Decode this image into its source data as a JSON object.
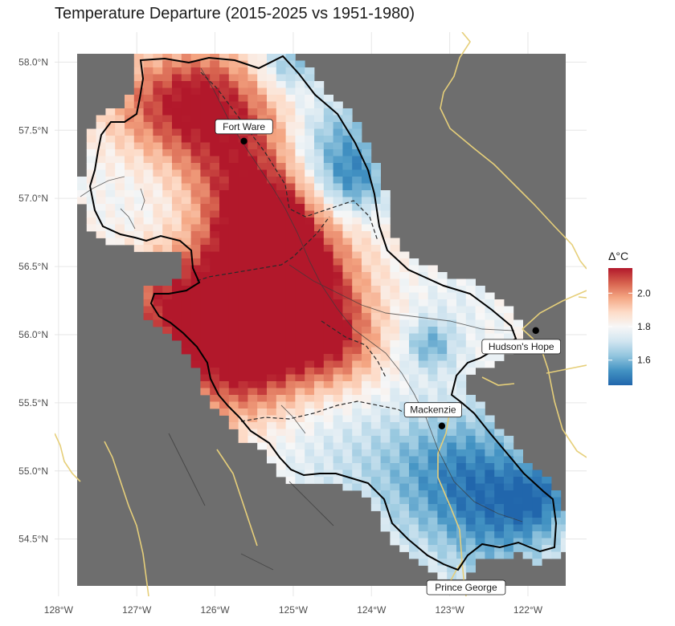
{
  "title": "Temperature Departure (2015-2025 vs 1951-1980)",
  "axes": {
    "x_ticks": [
      {
        "value": -128,
        "label": "128°W"
      },
      {
        "value": -127,
        "label": "127°W"
      },
      {
        "value": -126,
        "label": "126°W"
      },
      {
        "value": -125,
        "label": "125°W"
      },
      {
        "value": -124,
        "label": "124°W"
      },
      {
        "value": -123,
        "label": "123°W"
      },
      {
        "value": -122,
        "label": "122°W"
      }
    ],
    "y_ticks": [
      {
        "value": 58.0,
        "label": "58.0°N"
      },
      {
        "value": 57.5,
        "label": "57.5°N"
      },
      {
        "value": 57.0,
        "label": "57.0°N"
      },
      {
        "value": 56.5,
        "label": "56.5°N"
      },
      {
        "value": 56.0,
        "label": "56.0°N"
      },
      {
        "value": 55.5,
        "label": "55.5°N"
      },
      {
        "value": 55.0,
        "label": "55.0°N"
      },
      {
        "value": 54.5,
        "label": "54.5°N"
      }
    ],
    "x_range": [
      -128.05,
      -121.25
    ],
    "y_range": [
      54.08,
      58.22
    ]
  },
  "towns": [
    {
      "name": "Fort Ware",
      "lon": -125.63,
      "lat": 57.42
    },
    {
      "name": "Hudson's Hope",
      "lon": -121.9,
      "lat": 56.03
    },
    {
      "name": "Mackenzie",
      "lon": -123.1,
      "lat": 55.33
    },
    {
      "name": "Prince George",
      "lon": -122.75,
      "lat": 53.92
    }
  ],
  "legend": {
    "title": "Δ°C",
    "range": [
      1.45,
      2.15
    ],
    "ticks": [
      {
        "value": 2.0,
        "label": "2.0"
      },
      {
        "value": 1.8,
        "label": "1.8"
      },
      {
        "value": 1.6,
        "label": "1.6"
      }
    ],
    "colors": [
      "#2166ac",
      "#4393c3",
      "#92c5de",
      "#d1e5f0",
      "#f7f7f7",
      "#fddbc7",
      "#f4a582",
      "#d6604d",
      "#b2182b"
    ]
  },
  "colors": {
    "background": "#ffffff",
    "raster_nodata": "#6e6e6e",
    "road": "#e6cf7a",
    "boundary": "#000000",
    "gridline": "#e6e6e6"
  }
}
